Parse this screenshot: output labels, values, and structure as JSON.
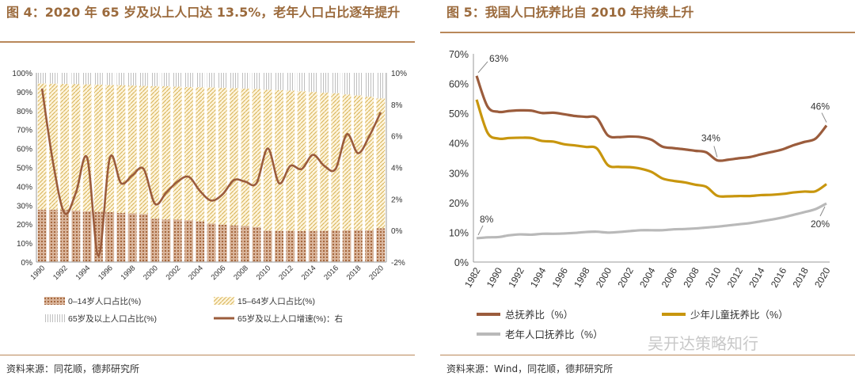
{
  "colors": {
    "brown": "#9b5c3c",
    "gold": "#c8960e",
    "gray": "#b9b9b9",
    "title": "#9b6a3c",
    "rule": "#b9885a"
  },
  "left": {
    "title": "图 4：2020 年 65 岁及以上人口达 13.5%，老年人口占比逐年提升",
    "source": "资料来源：同花顺，德邦研究所"
  },
  "right": {
    "title": "图 5：我国人口抚养比自 2010 年持续上升",
    "source": "资料来源：Wind，同花顺，德邦研究所"
  },
  "watermark": "吴开达策略知行",
  "chart_data": [
    {
      "type": "bar",
      "title": "2020 年 65 岁及以上人口达 13.5%，老年人口占比逐年提升",
      "stacked": true,
      "x": [
        1990,
        1991,
        1992,
        1993,
        1994,
        1995,
        1996,
        1997,
        1998,
        1999,
        2000,
        2001,
        2002,
        2003,
        2004,
        2005,
        2006,
        2007,
        2008,
        2009,
        2010,
        2011,
        2012,
        2013,
        2014,
        2015,
        2016,
        2017,
        2018,
        2019,
        2020
      ],
      "xticks": [
        "1990",
        "1992",
        "1994",
        "1996",
        "1998",
        "2000",
        "2002",
        "2004",
        "2006",
        "2008",
        "2010",
        "2012",
        "2014",
        "2016",
        "2018",
        "2020"
      ],
      "ylim": [
        0,
        100
      ],
      "yticks": [
        "0%",
        "10%",
        "20%",
        "30%",
        "40%",
        "50%",
        "60%",
        "70%",
        "80%",
        "90%",
        "100%"
      ],
      "y2lim": [
        -2,
        10
      ],
      "y2ticks": [
        "-2%",
        "0%",
        "2%",
        "4%",
        "6%",
        "8%",
        "10%"
      ],
      "series": [
        {
          "name": "0–14岁人口占比(%)",
          "pattern": "dots",
          "values": [
            27.7,
            27.7,
            27.6,
            27.2,
            26.8,
            26.6,
            26.4,
            26.0,
            25.7,
            25.4,
            22.9,
            22.5,
            22.4,
            22.1,
            21.5,
            20.3,
            19.8,
            19.4,
            19.0,
            18.5,
            16.6,
            16.5,
            16.5,
            16.4,
            16.5,
            16.5,
            16.7,
            16.8,
            16.9,
            16.8,
            17.9
          ]
        },
        {
          "name": "15–64岁人口占比(%)",
          "pattern": "diagonal",
          "values": [
            66.7,
            66.6,
            66.6,
            66.9,
            67.1,
            67.2,
            67.2,
            67.5,
            67.6,
            67.7,
            70.1,
            70.4,
            70.3,
            70.4,
            70.9,
            72.0,
            72.3,
            72.5,
            72.7,
            73.0,
            74.5,
            74.4,
            74.1,
            73.9,
            73.4,
            73.0,
            72.5,
            71.8,
            71.2,
            70.6,
            68.6
          ]
        },
        {
          "name": "65岁及以上人口占比(%)",
          "pattern": "vlines",
          "values": [
            5.6,
            5.7,
            5.8,
            5.9,
            6.1,
            6.2,
            6.4,
            6.5,
            6.7,
            6.9,
            7.0,
            7.1,
            7.3,
            7.5,
            7.6,
            7.7,
            7.9,
            8.1,
            8.3,
            8.5,
            8.9,
            9.1,
            9.4,
            9.7,
            10.1,
            10.5,
            10.8,
            11.4,
            11.9,
            12.6,
            13.5
          ]
        },
        {
          "name": "65岁及以上人口增速(%)：右",
          "type": "line",
          "axis": "right",
          "values": [
            9.0,
            4.2,
            1.1,
            2.4,
            4.6,
            -1.6,
            4.6,
            3.0,
            3.5,
            3.9,
            1.7,
            2.4,
            3.1,
            3.4,
            2.5,
            1.9,
            2.3,
            3.2,
            3.1,
            3.0,
            5.2,
            3.0,
            4.1,
            3.9,
            4.8,
            4.1,
            3.9,
            6.1,
            4.9,
            6.0,
            7.5
          ]
        }
      ]
    },
    {
      "type": "line",
      "title": "我国人口抚养比自 2010 年持续上升",
      "x": [
        1982,
        1987,
        1990,
        1991,
        1992,
        1993,
        1994,
        1995,
        1996,
        1997,
        1998,
        1999,
        2000,
        2001,
        2002,
        2003,
        2004,
        2005,
        2006,
        2007,
        2008,
        2009,
        2010,
        2011,
        2012,
        2013,
        2014,
        2015,
        2016,
        2017,
        2018,
        2019,
        2020
      ],
      "xticks": [
        "1982",
        "1990",
        "1992",
        "1994",
        "1996",
        "1998",
        "2000",
        "2002",
        "2004",
        "2006",
        "2008",
        "2010",
        "2012",
        "2014",
        "2016",
        "2018",
        "2020"
      ],
      "ylim": [
        0,
        70
      ],
      "yticks": [
        "0%",
        "10%",
        "20%",
        "30%",
        "40%",
        "50%",
        "60%",
        "70%"
      ],
      "annotations": [
        "63%",
        "46%",
        "34%",
        "8%",
        "20%"
      ],
      "series": [
        {
          "name": "总抚养比（%）",
          "values": [
            62.6,
            52.3,
            50.5,
            50.8,
            51.0,
            50.9,
            50.1,
            50.2,
            49.7,
            49.1,
            48.8,
            48.4,
            42.6,
            42.0,
            42.2,
            42.0,
            41.1,
            38.8,
            38.3,
            37.9,
            37.4,
            36.9,
            34.2,
            34.4,
            34.9,
            35.3,
            36.2,
            37.0,
            37.9,
            39.3,
            40.4,
            41.5,
            45.9
          ]
        },
        {
          "name": "少年儿童抚养比（%）",
          "values": [
            54.6,
            43.5,
            41.5,
            41.7,
            41.8,
            41.7,
            40.7,
            40.5,
            39.6,
            39.2,
            38.7,
            38.2,
            32.6,
            32.0,
            31.9,
            31.4,
            30.3,
            28.1,
            27.3,
            26.8,
            26.0,
            25.3,
            22.3,
            22.1,
            22.2,
            22.2,
            22.5,
            22.6,
            22.9,
            23.4,
            23.7,
            23.8,
            26.2
          ]
        },
        {
          "name": "老年人口抚养比（%）",
          "values": [
            8.0,
            8.3,
            8.4,
            9.0,
            9.3,
            9.2,
            9.5,
            9.5,
            9.6,
            9.8,
            10.1,
            10.2,
            9.9,
            10.1,
            10.4,
            10.7,
            10.7,
            10.7,
            11.0,
            11.1,
            11.3,
            11.6,
            11.9,
            12.3,
            12.7,
            13.1,
            13.7,
            14.3,
            15.0,
            15.9,
            16.8,
            17.8,
            19.7
          ]
        }
      ]
    }
  ]
}
